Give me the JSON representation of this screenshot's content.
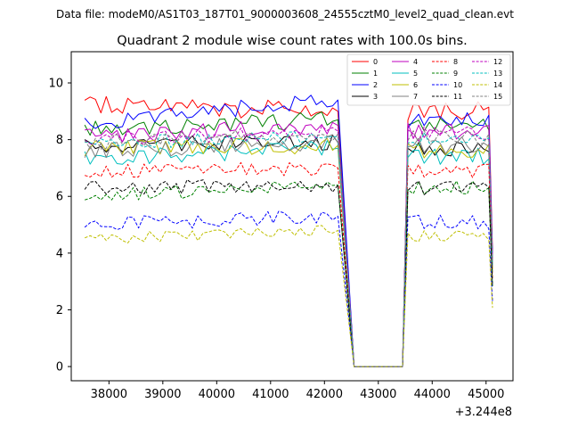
{
  "chart_data": {
    "type": "line",
    "suptitle": "Data file: modeM0/AS1T03_187T01_9000003608_24555cztM0_level2_quad_clean.evt",
    "title": "Quadrant 2 module wise count rates with 100.0s bins.",
    "xlabel": "",
    "ylabel": "",
    "x_offset_label": "+3.244e8",
    "xlim": [
      37300,
      45500
    ],
    "ylim": [
      -0.5,
      11.1
    ],
    "x_ticks": [
      38000,
      39000,
      40000,
      41000,
      42000,
      43000,
      44000,
      45000
    ],
    "x_tick_labels": [
      "38000",
      "39000",
      "40000",
      "41000",
      "42000",
      "43000",
      "44000",
      "45000"
    ],
    "y_ticks": [
      0,
      2,
      4,
      6,
      8,
      10
    ],
    "y_tick_labels": [
      "0",
      "2",
      "4",
      "6",
      "8",
      "10"
    ],
    "legend_position": "upper-right",
    "legend_columns": 4,
    "segments": [
      {
        "start": 37550,
        "end": 42250
      },
      {
        "start": 42250,
        "end": 42550
      },
      {
        "start": 42550,
        "end": 43450
      },
      {
        "start": 43450,
        "end": 43550
      },
      {
        "start": 43550,
        "end": 45050
      },
      {
        "start": 45050,
        "end": 45120
      }
    ],
    "series": [
      {
        "name": "0",
        "color": "#ff0000",
        "dash": "solid",
        "base": 9.3,
        "end": 9.0,
        "post": 9.0,
        "jitter": 0.35
      },
      {
        "name": "1",
        "color": "#008000",
        "dash": "solid",
        "base": 8.4,
        "end": 8.7,
        "post": 8.5,
        "jitter": 0.3
      },
      {
        "name": "2",
        "color": "#0000ff",
        "dash": "solid",
        "base": 8.6,
        "end": 9.4,
        "post": 8.7,
        "jitter": 0.3
      },
      {
        "name": "3",
        "color": "#000000",
        "dash": "solid",
        "base": 7.8,
        "end": 7.9,
        "post": 7.7,
        "jitter": 0.3
      },
      {
        "name": "4",
        "color": "#bf00bf",
        "dash": "solid",
        "base": 8.1,
        "end": 8.5,
        "post": 8.3,
        "jitter": 0.3
      },
      {
        "name": "5",
        "color": "#00bfbf",
        "dash": "solid",
        "base": 7.3,
        "end": 7.7,
        "post": 7.4,
        "jitter": 0.3
      },
      {
        "name": "6",
        "color": "#bfbf00",
        "dash": "solid",
        "base": 7.7,
        "end": 7.8,
        "post": 7.6,
        "jitter": 0.3
      },
      {
        "name": "7",
        "color": "#808080",
        "dash": "solid",
        "base": 7.6,
        "end": 7.9,
        "post": 7.8,
        "jitter": 0.3
      },
      {
        "name": "8",
        "color": "#ff0000",
        "dash": "dashed",
        "base": 6.9,
        "end": 7.0,
        "post": 6.9,
        "jitter": 0.25
      },
      {
        "name": "9",
        "color": "#008000",
        "dash": "dashed",
        "base": 6.0,
        "end": 6.4,
        "post": 6.3,
        "jitter": 0.25
      },
      {
        "name": "10",
        "color": "#0000ff",
        "dash": "dashed",
        "base": 5.0,
        "end": 5.3,
        "post": 5.1,
        "jitter": 0.25
      },
      {
        "name": "11",
        "color": "#000000",
        "dash": "dashed",
        "base": 6.3,
        "end": 6.4,
        "post": 6.3,
        "jitter": 0.25
      },
      {
        "name": "12",
        "color": "#bf00bf",
        "dash": "dashed",
        "base": 8.0,
        "end": 8.3,
        "post": 8.2,
        "jitter": 0.25
      },
      {
        "name": "13",
        "color": "#00bfbf",
        "dash": "dashed",
        "base": 7.9,
        "end": 8.1,
        "post": 8.0,
        "jitter": 0.25
      },
      {
        "name": "14",
        "color": "#bfbf00",
        "dash": "dashed",
        "base": 4.5,
        "end": 4.8,
        "post": 4.6,
        "jitter": 0.2
      },
      {
        "name": "15",
        "color": "#808080",
        "dash": "dashed",
        "base": 7.9,
        "end": 8.2,
        "post": 8.1,
        "jitter": 0.25
      }
    ]
  }
}
